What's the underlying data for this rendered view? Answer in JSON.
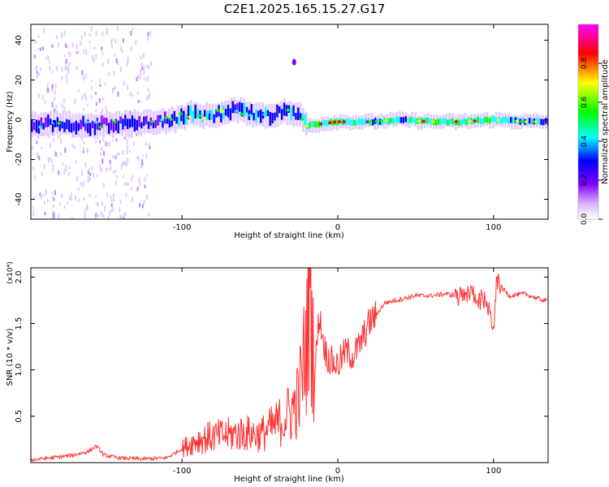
{
  "figure": {
    "title": "C2E1.2025.165.15.27.G17"
  },
  "chart_data": [
    {
      "type": "heatmap",
      "title": "C2E1.2025.165.15.27.G17",
      "xlabel": "Height of straight line (km)",
      "ylabel": "Frequency (Hz)",
      "xlim": [
        -197,
        135
      ],
      "ylim": [
        -50,
        48
      ],
      "xticks": [
        -100,
        0,
        100
      ],
      "yticks": [
        -40,
        -20,
        0,
        20,
        40
      ],
      "colorbar": {
        "label": "Normalized spectral amplitude",
        "range": [
          0,
          1
        ],
        "ticks": [
          "0.0",
          "0.2",
          "0.4",
          "0.6",
          "0.8"
        ],
        "colors": [
          "#ffffff",
          "#7f00ff",
          "#0000ff",
          "#00ffff",
          "#00ff00",
          "#ffff00",
          "#ff0000",
          "#ff00ff"
        ]
      },
      "ridge": {
        "x": [
          -197,
          -180,
          -160,
          -140,
          -120,
          -105,
          -95,
          -85,
          -75,
          -65,
          -55,
          -45,
          -35,
          -25,
          -20,
          -10,
          0,
          20,
          40,
          60,
          80,
          100,
          120,
          135
        ],
        "freq_hz": [
          -3,
          -2,
          -3,
          -2,
          -1,
          0,
          3,
          2,
          3,
          5,
          3,
          2,
          4,
          2,
          -3,
          -2,
          -1,
          -1,
          0,
          -1,
          -1,
          0,
          -1,
          -1
        ],
        "amplitude": [
          0.35,
          0.4,
          0.4,
          0.35,
          0.4,
          0.45,
          0.5,
          0.5,
          0.5,
          0.45,
          0.5,
          0.45,
          0.5,
          0.4,
          0.7,
          0.75,
          0.75,
          0.6,
          0.6,
          0.7,
          0.75,
          0.65,
          0.55,
          0.5
        ]
      },
      "spot": {
        "x": -28,
        "freq_hz": 29
      }
    },
    {
      "type": "line",
      "xlabel": "Height of straight line (km)",
      "ylabel": "SNR (10 * v/v)",
      "multiplier": "(x10⁴)",
      "xlim": [
        -197,
        135
      ],
      "ylim": [
        0,
        2.1
      ],
      "xticks": [
        -100,
        0,
        100
      ],
      "yticks": [
        0.5,
        1.0,
        1.5,
        2.0
      ],
      "color": "#ff3333",
      "series": [
        {
          "x": [
            -197,
            -185,
            -170,
            -160,
            -155,
            -150,
            -140,
            -125,
            -110,
            -100,
            -90,
            -80,
            -70,
            -60,
            -50,
            -40,
            -30,
            -25,
            -20,
            -18,
            -15,
            -12,
            -8,
            -5,
            0,
            5,
            10,
            15,
            20,
            25,
            30,
            40,
            50,
            60,
            70,
            80,
            85,
            90,
            95,
            100,
            102,
            110,
            120,
            130,
            135
          ],
          "y": [
            0.03,
            0.05,
            0.08,
            0.12,
            0.18,
            0.08,
            0.05,
            0.04,
            0.05,
            0.15,
            0.25,
            0.28,
            0.3,
            0.32,
            0.3,
            0.4,
            0.55,
            0.7,
            1.3,
            2.1,
            0.9,
            1.6,
            1.2,
            1.1,
            1.05,
            1.2,
            1.15,
            1.3,
            1.5,
            1.6,
            1.72,
            1.76,
            1.8,
            1.8,
            1.82,
            1.78,
            1.85,
            1.76,
            1.75,
            1.45,
            1.95,
            1.8,
            1.82,
            1.76,
            1.74
          ]
        }
      ]
    }
  ]
}
